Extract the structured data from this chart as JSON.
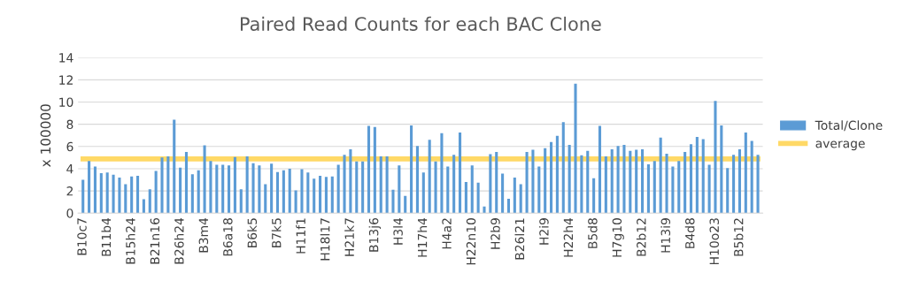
{
  "chart_data": {
    "type": "bar",
    "title": "Paired Read Counts for each BAC Clone",
    "ylabel": "x 100000",
    "categories": [
      "B10c7",
      null,
      null,
      null,
      "B11b4",
      null,
      null,
      null,
      "B15h24",
      null,
      null,
      null,
      "B21n16",
      null,
      null,
      null,
      "B26h24",
      null,
      null,
      null,
      "B3m4",
      null,
      null,
      null,
      "B6a18",
      null,
      null,
      null,
      "B6k5",
      null,
      null,
      null,
      "B7k5",
      null,
      null,
      null,
      "H11f1",
      null,
      null,
      null,
      "H18l17",
      null,
      null,
      null,
      "H21k7",
      null,
      null,
      null,
      "B13j6",
      null,
      null,
      null,
      "H3l4",
      null,
      null,
      null,
      "H17h4",
      null,
      null,
      null,
      "H4a2",
      null,
      null,
      null,
      "H22n10",
      null,
      null,
      null,
      "H2b9",
      null,
      null,
      null,
      "B26l21",
      null,
      null,
      null,
      "H2i9",
      null,
      null,
      null,
      "H22h4",
      null,
      null,
      null,
      "B5d8",
      null,
      null,
      null,
      "H7g10",
      null,
      null,
      null,
      "B2b12",
      null,
      null,
      null,
      "H13i9",
      null,
      null,
      null,
      "B4d8",
      null,
      null,
      null,
      "H10o23",
      null,
      null,
      null,
      "B5b12",
      null,
      null,
      null
    ],
    "series": [
      {
        "name": "Total/Clone",
        "color": "#5b9bd5",
        "values": [
          3.0,
          4.7,
          4.2,
          3.6,
          3.65,
          3.45,
          3.2,
          2.6,
          3.3,
          3.35,
          1.25,
          2.15,
          3.8,
          5.0,
          5.1,
          8.4,
          4.1,
          5.5,
          3.5,
          3.85,
          6.1,
          4.7,
          4.35,
          4.35,
          4.3,
          5.05,
          2.15,
          5.1,
          4.5,
          4.3,
          2.6,
          4.45,
          3.7,
          3.85,
          4.0,
          2.05,
          3.95,
          3.65,
          3.1,
          3.35,
          3.25,
          3.3,
          4.35,
          5.25,
          5.75,
          4.65,
          4.65,
          7.85,
          7.75,
          5.1,
          5.1,
          2.1,
          4.3,
          1.55,
          7.9,
          6.05,
          3.65,
          6.6,
          4.65,
          7.2,
          4.2,
          5.25,
          7.25,
          2.8,
          4.3,
          2.75,
          0.6,
          5.3,
          5.5,
          3.55,
          1.3,
          3.2,
          2.6,
          5.5,
          5.7,
          4.2,
          5.85,
          6.4,
          6.95,
          8.2,
          6.15,
          11.65,
          5.2,
          5.6,
          3.15,
          7.85,
          5.1,
          5.75,
          6.05,
          6.15,
          5.6,
          5.7,
          5.75,
          4.4,
          4.7,
          6.8,
          5.35,
          4.2,
          4.7,
          5.5,
          6.2,
          6.85,
          6.65,
          4.35,
          10.1,
          7.9,
          4.05,
          5.25,
          5.75,
          7.25,
          6.5,
          5.25
        ]
      },
      {
        "name": "average",
        "type": "line",
        "color": "#ffd966",
        "values": [
          4.88,
          4.88,
          4.88,
          4.88,
          4.88,
          4.88,
          4.88,
          4.88,
          4.88,
          4.88,
          4.88,
          4.88,
          4.88,
          4.88,
          4.88,
          4.88,
          4.88,
          4.88,
          4.88,
          4.88,
          4.88,
          4.88,
          4.88,
          4.88,
          4.88,
          4.88,
          4.88,
          4.88,
          4.88,
          4.88,
          4.88,
          4.88,
          4.88,
          4.88,
          4.88,
          4.88,
          4.88,
          4.88,
          4.88,
          4.88,
          4.88,
          4.88,
          4.88,
          4.88,
          4.88,
          4.88,
          4.88,
          4.88,
          4.88,
          4.88,
          4.88,
          4.88,
          4.88,
          4.88,
          4.88,
          4.88,
          4.88,
          4.88,
          4.88,
          4.88,
          4.88,
          4.88,
          4.88,
          4.88,
          4.88,
          4.88,
          4.88,
          4.88,
          4.88,
          4.88,
          4.88,
          4.88,
          4.88,
          4.88,
          4.88,
          4.88,
          4.88,
          4.88,
          4.88,
          4.88,
          4.88,
          4.88,
          4.88,
          4.88,
          4.88,
          4.88,
          4.88,
          4.88,
          4.88,
          4.88,
          4.88,
          4.88,
          4.88,
          4.88,
          4.88,
          4.88,
          4.88,
          4.88,
          4.88,
          4.88,
          4.88,
          4.88,
          4.88,
          4.88,
          4.88,
          4.88,
          4.88,
          4.88,
          4.88,
          4.88,
          4.88,
          4.88
        ]
      }
    ],
    "ylim": [
      0,
      14
    ],
    "yticks": [
      0,
      2,
      4,
      6,
      8,
      10,
      12,
      14
    ],
    "grid": "y",
    "legend": "right",
    "marker": "none"
  }
}
